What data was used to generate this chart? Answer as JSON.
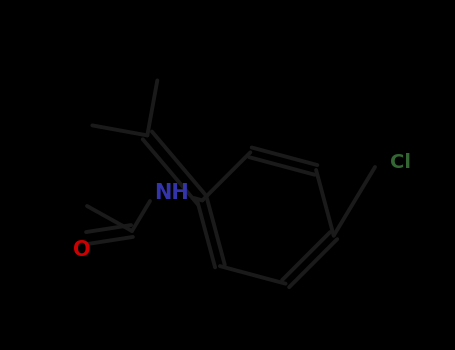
{
  "background_color": "#000000",
  "bond_color": "#1a1a1a",
  "nh_color": "#3333aa",
  "o_color": "#cc0000",
  "cl_color": "#336633",
  "line_width": 2.8,
  "figsize": [
    4.55,
    3.5
  ],
  "dpi": 100,
  "font_size_nh": 15,
  "font_size_o": 15,
  "font_size_cl": 14,
  "xlim": [
    0,
    455
  ],
  "ylim": [
    0,
    350
  ]
}
